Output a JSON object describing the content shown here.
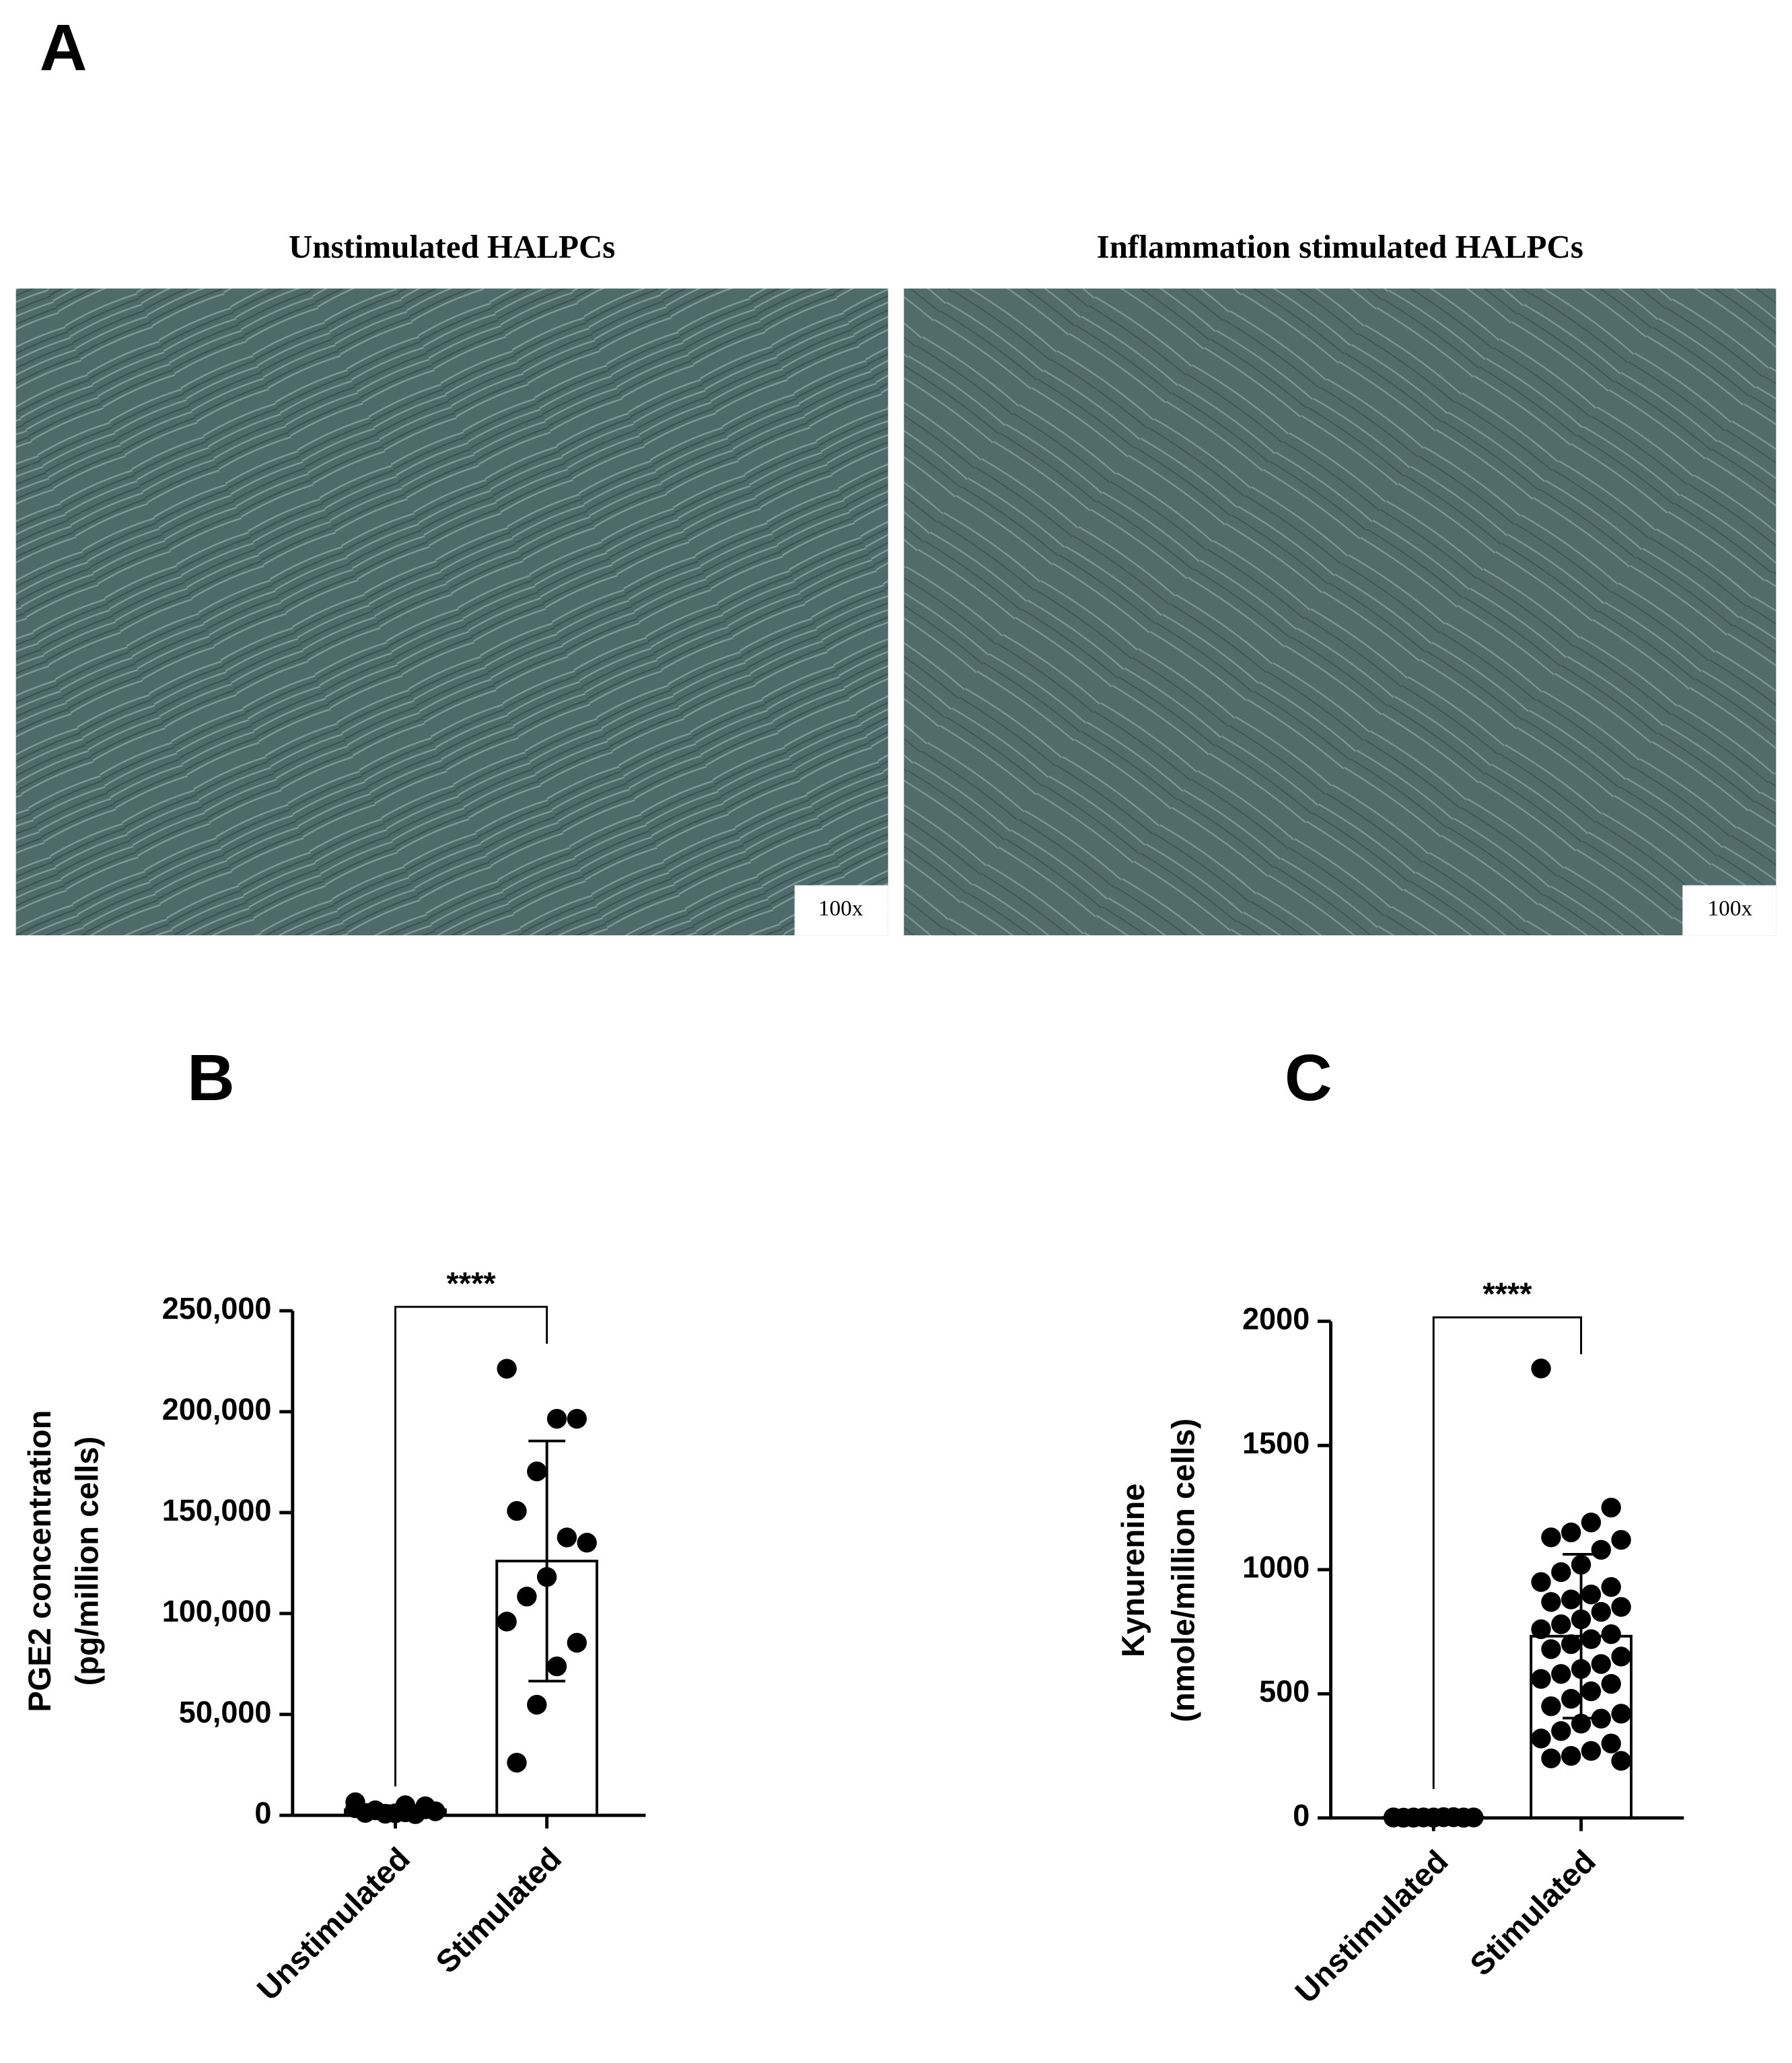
{
  "panel_a": {
    "label": "A",
    "images": [
      {
        "title": "Unstimulated HALPCs",
        "magnification": "100x"
      },
      {
        "title": "Inflammation stimulated HALPCs",
        "magnification": "100x"
      }
    ]
  },
  "chart_data": [
    {
      "type": "bar",
      "panel": "B",
      "ylabel": [
        "PGE2 concentration",
        "(pg/million cells)"
      ],
      "categories": [
        "Unstimulated",
        "Stimulated"
      ],
      "values": [
        2800,
        126000
      ],
      "errors": [
        2000,
        59500
      ],
      "points": [
        [
          6500,
          3000,
          1500,
          800,
          1200,
          2000,
          600,
          1000,
          2500,
          3500,
          4500,
          5000
        ],
        [
          221300,
          196500,
          196500,
          170400,
          150800,
          135100,
          137700,
          118100,
          108400,
          96000,
          85500,
          73800,
          54800,
          26100
        ]
      ],
      "annotation": "****",
      "color": "#000000",
      "ylim": [
        0,
        250000
      ],
      "yticks": [
        0,
        {
          "value": 50000,
          "label": "50,000"
        },
        {
          "value": 100000,
          "label": "100,000"
        },
        {
          "value": 150000,
          "label": "150,000"
        },
        {
          "value": 200000,
          "label": "200,000"
        },
        {
          "value": 250000,
          "label": "250,000"
        }
      ]
    },
    {
      "type": "bar",
      "panel": "C",
      "ylabel": [
        "Kynurenine",
        "(nmole/million cells)"
      ],
      "categories": [
        "Unstimulated",
        "Stimulated"
      ],
      "values": [
        2,
        732
      ],
      "errors": [
        1,
        330
      ],
      "points": [
        [
          2,
          1,
          3,
          2,
          1,
          2,
          3,
          1,
          2,
          2,
          1,
          3,
          2,
          1,
          2,
          3,
          2,
          1,
          2,
          2
        ],
        [
          1810,
          1250,
          1190,
          1150,
          1130,
          1120,
          1080,
          1020,
          990,
          950,
          930,
          900,
          880,
          870,
          850,
          830,
          800,
          780,
          760,
          740,
          720,
          700,
          680,
          650,
          620,
          600,
          580,
          560,
          540,
          510,
          480,
          450,
          420,
          400,
          380,
          350,
          320,
          300,
          270,
          250,
          240,
          230
        ]
      ],
      "annotation": "****",
      "color": "#000000",
      "ylim": [
        0,
        2000
      ],
      "yticks": [
        0,
        500,
        1000,
        1500,
        2000
      ]
    }
  ]
}
